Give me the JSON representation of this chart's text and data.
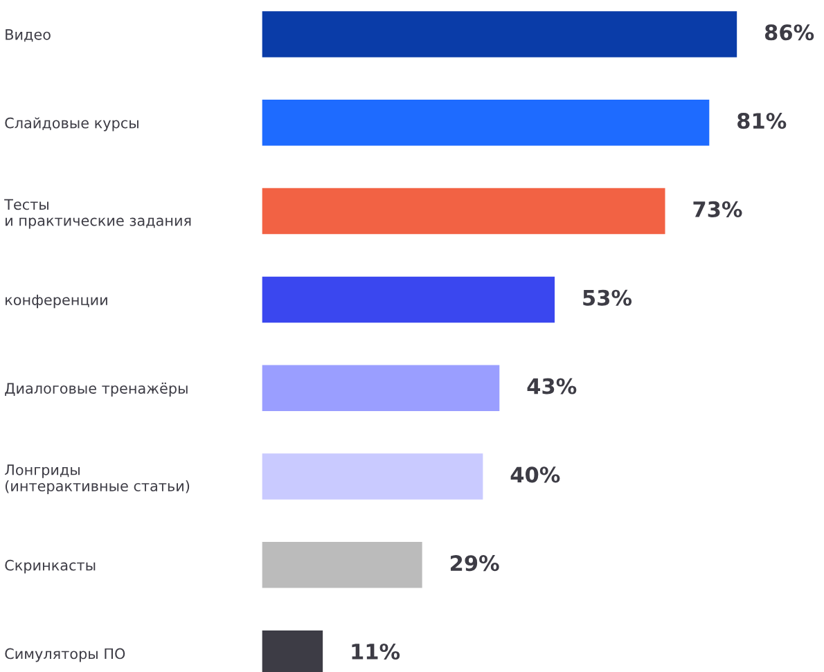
{
  "chart_data": {
    "type": "bar",
    "orientation": "horizontal",
    "categories": [
      "Видео",
      "Слайдовые курсы",
      "Тесты\nи практические задания",
      "конференции",
      "Диалоговые тренажёры",
      "Лонгриды\n(интерактивные статьи)",
      "Скринкасты",
      "Симуляторы ПО"
    ],
    "values": [
      86,
      81,
      73,
      53,
      43,
      40,
      29,
      11
    ],
    "colors": [
      "#0a3ca8",
      "#1e6bff",
      "#f26244",
      "#3a47ef",
      "#9a9eff",
      "#c9caff",
      "#bbbbbb",
      "#3d3c45"
    ],
    "value_labels": [
      "86%",
      "81%",
      "73%",
      "53%",
      "43%",
      "40%",
      "29%",
      "11%"
    ],
    "grid": false,
    "legend": false
  }
}
